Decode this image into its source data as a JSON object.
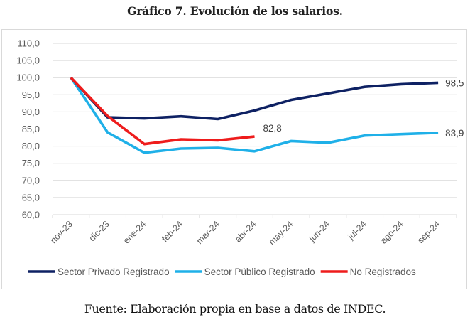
{
  "title": "Gráfico 7. Evolución de los salarios.",
  "source": "Fuente: Elaboración propia en base a datos de INDEC.",
  "chart_data": {
    "type": "line",
    "title": "Gráfico 7. Evolución de los salarios.",
    "xlabel": "",
    "ylabel": "",
    "categories": [
      "nov-23",
      "dic-23",
      "ene-24",
      "feb-24",
      "mar-24",
      "abr-24",
      "may-24",
      "jun-24",
      "jul-24",
      "ago-24",
      "sep-24"
    ],
    "ylim": [
      60,
      110
    ],
    "yticks": [
      "60,0",
      "65,0",
      "70,0",
      "75,0",
      "80,0",
      "85,0",
      "90,0",
      "95,0",
      "100,0",
      "105,0",
      "110,0"
    ],
    "grid": true,
    "legend_position": "bottom",
    "series": [
      {
        "name": "Sector Privado Registrado",
        "color": "#0e2163",
        "values": [
          100.0,
          88.4,
          88.1,
          88.7,
          87.9,
          90.4,
          93.5,
          95.4,
          97.3,
          98.1,
          98.5
        ],
        "end_label": "98,5"
      },
      {
        "name": "Sector Público Registrado",
        "color": "#1fb0e8",
        "values": [
          100.0,
          84.0,
          78.1,
          79.3,
          79.5,
          78.5,
          81.5,
          81.0,
          83.1,
          83.5,
          83.9
        ],
        "end_label": "83,9"
      },
      {
        "name": "No Registrados",
        "color": "#ee1c1c",
        "values": [
          100.0,
          88.8,
          80.6,
          82.0,
          81.7,
          82.8,
          null,
          null,
          null,
          null,
          null
        ],
        "end_label": "82,8"
      }
    ]
  }
}
